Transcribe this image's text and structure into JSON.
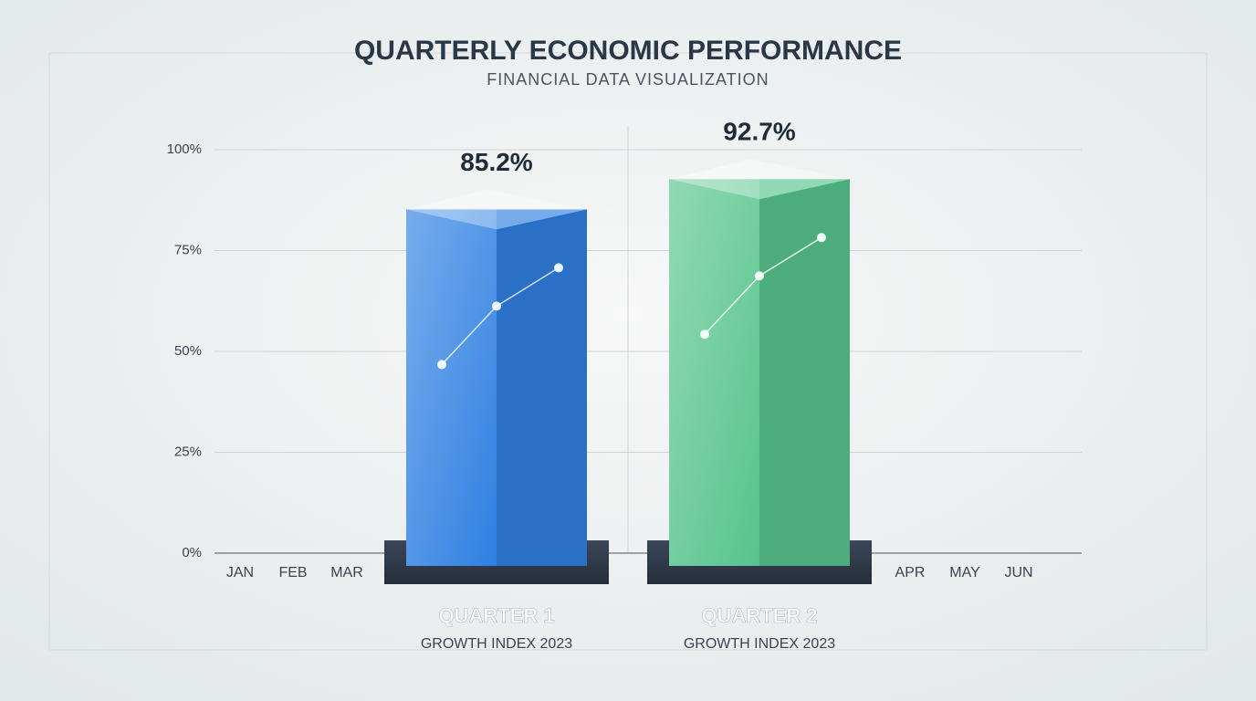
{
  "chart_data": {
    "type": "bar",
    "title": "QUARTERLY ECONOMIC PERFORMANCE",
    "subtitle": "FINANCIAL DATA VISUALIZATION",
    "categories": [
      "QUARTER 1",
      "QUARTER 2"
    ],
    "category_subtitles": [
      "GROWTH INDEX 2023",
      "GROWTH INDEX 2023"
    ],
    "values": [
      85.2,
      92.7
    ],
    "value_labels": [
      "85.2%",
      "92.7%"
    ],
    "colors": [
      "#2f80e2",
      "#57c48c"
    ],
    "ylim": [
      0,
      100
    ],
    "yticks": [
      {
        "value": 0,
        "label": "0%"
      },
      {
        "value": 25,
        "label": "25%"
      },
      {
        "value": 50,
        "label": "50%"
      },
      {
        "value": 75,
        "label": "75%"
      },
      {
        "value": 100,
        "label": "100%"
      }
    ],
    "grid": true,
    "months": [
      "JAN",
      "FEB",
      "MAR",
      "APR",
      "MAY",
      "JUN"
    ]
  }
}
